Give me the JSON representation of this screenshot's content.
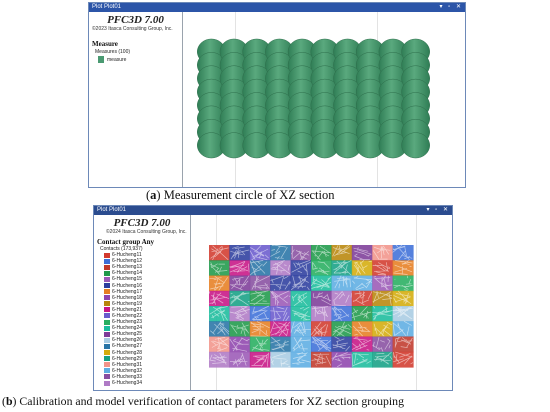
{
  "panel_a": {
    "window_title": "Plot Plot01",
    "title_controls": "▾ ▫ ✕",
    "app_title": "PFC3D 7.00",
    "copyright": "©2023 Itasca Consulting Group, Inc.",
    "legend_heading": "Measure",
    "legend_sub": "Measures (100)",
    "legend_item": "measure",
    "legend_color": "#4a9a72",
    "ball_color": "#5aa97e",
    "grid": {
      "columns": 10,
      "rows": 8
    }
  },
  "caption_a": {
    "letter": "a",
    "text": " Measurement circle of XZ section"
  },
  "panel_b": {
    "window_title": "Plot Plot01",
    "title_controls": "▾ ▫ ✕",
    "app_title": "PFC3D 7.00",
    "copyright": "©2024 Itasca Consulting Group, Inc.",
    "legend_heading": "Contact group Any",
    "legend_sub": "Contacts (173,937)",
    "groups": [
      {
        "label": "6-Hucheng11",
        "color": "#d23a2e"
      },
      {
        "label": "6-Hucheng12",
        "color": "#3d6fd8"
      },
      {
        "label": "6-Hucheng13",
        "color": "#c0392b"
      },
      {
        "label": "6-Hucheng14",
        "color": "#1f9a4a"
      },
      {
        "label": "6-Hucheng15",
        "color": "#9b59b6"
      },
      {
        "label": "6-Hucheng16",
        "color": "#2c3e9e"
      },
      {
        "label": "6-Hucheng17",
        "color": "#e67e22"
      },
      {
        "label": "6-Hucheng18",
        "color": "#8e44ad"
      },
      {
        "label": "6-Hucheng19",
        "color": "#b8860b"
      },
      {
        "label": "6-Hucheng21",
        "color": "#c71585"
      },
      {
        "label": "6-Hucheng22",
        "color": "#6a5acd"
      },
      {
        "label": "6-Hucheng23",
        "color": "#27ae60"
      },
      {
        "label": "6-Hucheng24",
        "color": "#1abc9c"
      },
      {
        "label": "6-Hucheng25",
        "color": "#7d3c98"
      },
      {
        "label": "6-Hucheng26",
        "color": "#a9cce3"
      },
      {
        "label": "6-Hucheng27",
        "color": "#2874a6"
      },
      {
        "label": "6-Hucheng28",
        "color": "#d4ac0d"
      },
      {
        "label": "6-Hucheng29",
        "color": "#16a085"
      },
      {
        "label": "6-Hucheng31",
        "color": "#f1948a"
      },
      {
        "label": "6-Hucheng32",
        "color": "#5dade2"
      },
      {
        "label": "6-Hucheng33",
        "color": "#884ea0"
      },
      {
        "label": "6-Hucheng34",
        "color": "#af7ac5"
      }
    ],
    "grid": {
      "columns": 10,
      "rows": 8
    }
  },
  "caption_b": {
    "letter": "b",
    "text": " Calibration and model verification of contact parameters for XZ section grouping"
  }
}
